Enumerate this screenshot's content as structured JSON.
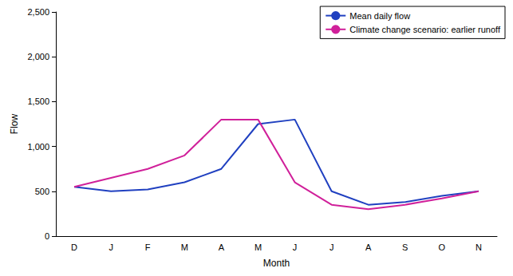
{
  "chart_data": {
    "type": "line",
    "x_label": "Month",
    "y_label": "Flow",
    "categories": [
      "D",
      "J",
      "F",
      "M",
      "A",
      "M",
      "J",
      "J",
      "A",
      "S",
      "O",
      "N"
    ],
    "series": [
      {
        "name": "Mean daily flow",
        "color": "#2040c0",
        "values": [
          550,
          500,
          520,
          600,
          750,
          1250,
          1300,
          500,
          350,
          380,
          450,
          500
        ]
      },
      {
        "name": "Climate change scenario: earlier runoff",
        "color": "#d0209a",
        "values": [
          550,
          650,
          750,
          900,
          1300,
          1300,
          600,
          350,
          300,
          350,
          420,
          500
        ]
      }
    ],
    "ylim": [
      0,
      2500
    ],
    "yticks": [
      0,
      500,
      1000,
      1500,
      2000,
      2500
    ],
    "grid": false,
    "legend": "top-right"
  }
}
